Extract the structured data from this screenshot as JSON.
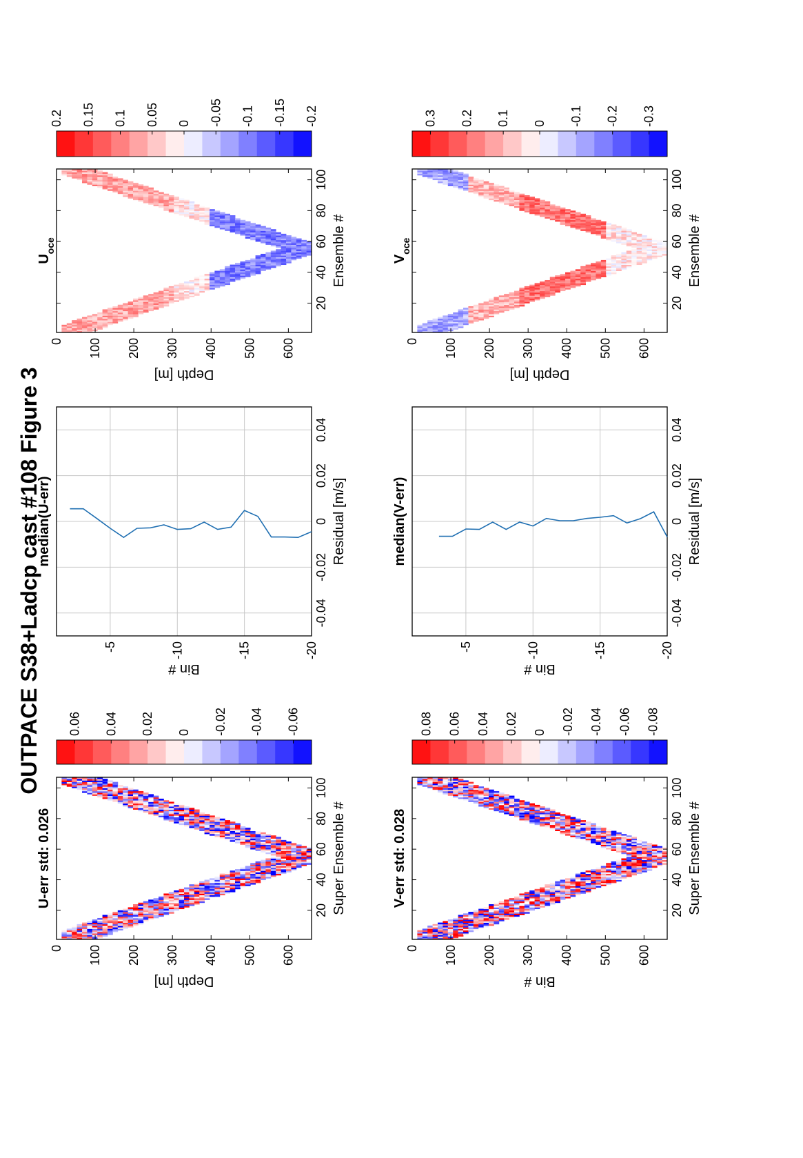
{
  "figure_title": "OUTPACE S38+Ladcp cast #108  Figure 3",
  "colors": {
    "positive": "#ff0000",
    "negative": "#0000ff",
    "line": "#1f6fb2",
    "grid": "#c8c8c8"
  },
  "chart_data": [
    {
      "id": "uerr",
      "type": "heatmap",
      "title": "U-err std: 0.026",
      "xlabel": "Super Ensemble #",
      "ylabel": "Depth [m]",
      "xlim": [
        1,
        107
      ],
      "ylim": [
        0,
        660
      ],
      "xticks": [
        "20",
        "40",
        "60",
        "80",
        "100"
      ],
      "yticks": [
        "0",
        "100",
        "200",
        "300",
        "400",
        "500",
        "600"
      ],
      "profile": {
        "apex_ensemble": 55,
        "max_depth": 660,
        "top_depth": 30,
        "band_width": 18
      },
      "value_range": [
        -0.07,
        0.07
      ],
      "colorbar": {
        "ticks": [
          "0.06",
          "0.04",
          "0.02",
          "0",
          "-0.02",
          "-0.04",
          "-0.06"
        ]
      }
    },
    {
      "id": "uresid",
      "type": "line",
      "title": "median(U-err)",
      "xlabel": "Residual [m/s]",
      "ylabel": "Bin #",
      "xlim": [
        -0.05,
        0.05
      ],
      "ylim": [
        -20,
        -1
      ],
      "xticks": [
        "-0.04",
        "-0.02",
        "0",
        "0.02",
        "0.04"
      ],
      "yticks": [
        "-5",
        "-10",
        "-15",
        "-20"
      ],
      "grid": true,
      "series": [
        {
          "bin": [
            -2,
            -3,
            -4,
            -5,
            -6,
            -7,
            -8,
            -9,
            -10,
            -11,
            -12,
            -13,
            -14,
            -15,
            -16,
            -17,
            -18,
            -19,
            -20
          ],
          "residual": [
            0.0055,
            0.0055,
            0.0013,
            -0.003,
            -0.007,
            -0.003,
            -0.0028,
            -0.0015,
            -0.0035,
            -0.0032,
            -0.0003,
            -0.0035,
            -0.0025,
            0.0048,
            0.0022,
            -0.0068,
            -0.0068,
            -0.007,
            -0.0045
          ]
        }
      ]
    },
    {
      "id": "uoce",
      "type": "heatmap",
      "title": "U",
      "title_sub": "oce",
      "xlabel": "Ensemble #",
      "ylabel": "Depth [m]",
      "xlim": [
        1,
        107
      ],
      "ylim": [
        0,
        660
      ],
      "xticks": [
        "20",
        "40",
        "60",
        "80",
        "100"
      ],
      "yticks": [
        "0",
        "100",
        "200",
        "300",
        "400",
        "500",
        "600"
      ],
      "profile": {
        "apex_ensemble": 55,
        "max_depth": 660,
        "top_depth": 30,
        "band_width": 15
      },
      "value_range": [
        -0.2,
        0.2
      ],
      "colorbar": {
        "ticks": [
          "0.2",
          "0.15",
          "0.1",
          "0.05",
          "0",
          "-0.05",
          "-0.1",
          "-0.15",
          "-0.2"
        ]
      }
    },
    {
      "id": "verr",
      "type": "heatmap",
      "title": "V-err std: 0.028",
      "xlabel": "Super Ensemble #",
      "ylabel": "Bin #",
      "xlim": [
        1,
        107
      ],
      "ylim": [
        0,
        660
      ],
      "xticks": [
        "20",
        "40",
        "60",
        "80",
        "100"
      ],
      "yticks": [
        "0",
        "100",
        "200",
        "300",
        "400",
        "500",
        "600"
      ],
      "profile": {
        "apex_ensemble": 55,
        "max_depth": 660,
        "top_depth": 30,
        "band_width": 18
      },
      "value_range": [
        -0.09,
        0.09
      ],
      "colorbar": {
        "ticks": [
          "0.08",
          "0.06",
          "0.04",
          "0.02",
          "0",
          "-0.02",
          "-0.04",
          "-0.06",
          "-0.08"
        ]
      }
    },
    {
      "id": "vresid",
      "type": "line",
      "title": "median(V-err)",
      "xlabel": "Residual [m/s]",
      "ylabel": "Bin #",
      "xlim": [
        -0.05,
        0.05
      ],
      "ylim": [
        -20,
        -1
      ],
      "xticks": [
        "-0.04",
        "-0.02",
        "0",
        "0.02",
        "0.04"
      ],
      "yticks": [
        "-5",
        "-10",
        "-15",
        "-20"
      ],
      "grid": true,
      "series": [
        {
          "bin": [
            -3,
            -4,
            -5,
            -6,
            -7,
            -8,
            -9,
            -10,
            -11,
            -12,
            -13,
            -14,
            -15,
            -16,
            -17,
            -18,
            -19,
            -20
          ],
          "residual": [
            -0.0065,
            -0.0065,
            -0.0033,
            -0.0035,
            -0.0003,
            -0.0035,
            -0.0003,
            -0.002,
            0.0013,
            0.0003,
            0.0003,
            0.0013,
            0.0018,
            0.0025,
            -0.0007,
            0.0012,
            0.0042,
            -0.0068
          ]
        }
      ]
    },
    {
      "id": "voce",
      "type": "heatmap",
      "title": "V",
      "title_sub": "oce",
      "xlabel": "Ensemble #",
      "ylabel": "Depth [m]",
      "xlim": [
        1,
        107
      ],
      "ylim": [
        0,
        660
      ],
      "xticks": [
        "20",
        "40",
        "60",
        "80",
        "100"
      ],
      "yticks": [
        "0",
        "100",
        "200",
        "300",
        "400",
        "500",
        "600"
      ],
      "profile": {
        "apex_ensemble": 55,
        "max_depth": 660,
        "top_depth": 30,
        "band_width": 15
      },
      "value_range": [
        -0.35,
        0.35
      ],
      "colorbar": {
        "ticks": [
          "0.3",
          "0.2",
          "0.1",
          "0",
          "-0.1",
          "-0.2",
          "-0.3"
        ]
      }
    }
  ]
}
